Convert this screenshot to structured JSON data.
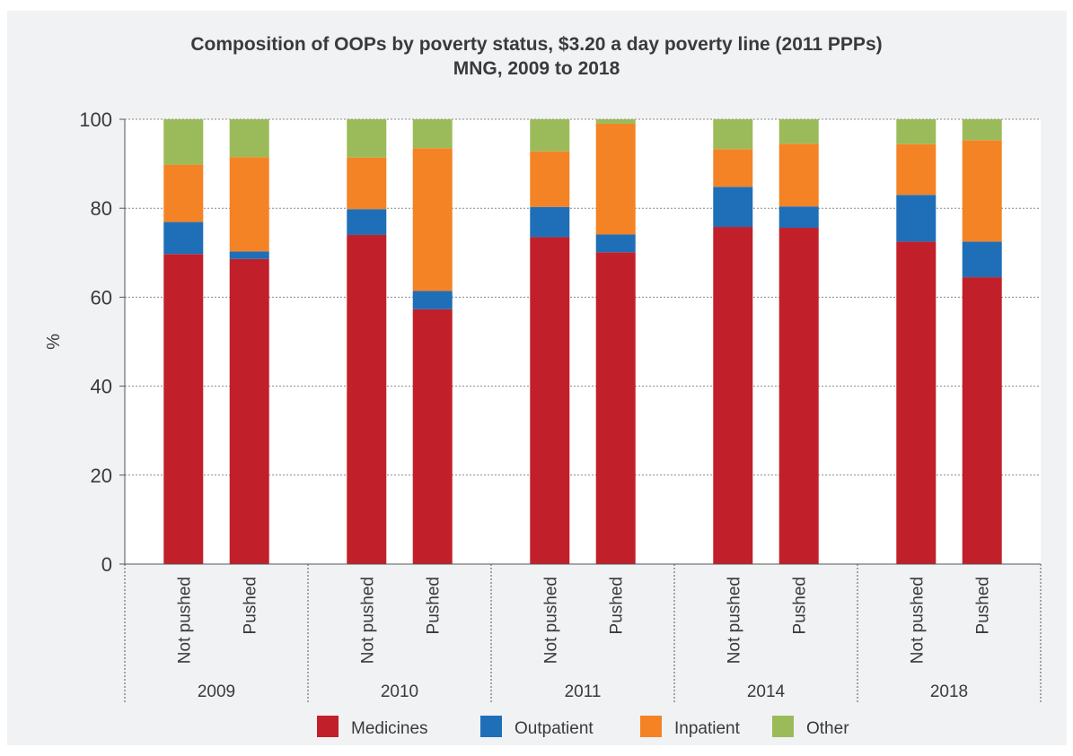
{
  "chart_data": {
    "type": "bar",
    "stacked": true,
    "title": "Composition of OOPs by poverty status, $3.20 a day poverty line (2011 PPPs)",
    "subtitle": "MNG, 2009 to 2018",
    "ylabel": "%",
    "xlabel": "",
    "ylim": [
      0,
      100
    ],
    "yticks": [
      0,
      20,
      40,
      60,
      80,
      100
    ],
    "grid": true,
    "legend_position": "bottom",
    "groups": [
      {
        "label": "2009",
        "bars": [
          {
            "label": "Not pushed",
            "values": [
              69.7,
              7.2,
              12.9,
              10.2
            ]
          },
          {
            "label": "Pushed",
            "values": [
              68.6,
              1.7,
              21.2,
              8.5
            ]
          }
        ]
      },
      {
        "label": "2010",
        "bars": [
          {
            "label": "Not pushed",
            "values": [
              74.0,
              5.8,
              11.6,
              8.6
            ]
          },
          {
            "label": "Pushed",
            "values": [
              57.3,
              4.1,
              32.1,
              6.5
            ]
          }
        ]
      },
      {
        "label": "2011",
        "bars": [
          {
            "label": "Not pushed",
            "values": [
              73.5,
              6.8,
              12.5,
              7.2
            ]
          },
          {
            "label": "Pushed",
            "values": [
              70.1,
              4.0,
              24.9,
              1.0
            ]
          }
        ]
      },
      {
        "label": "2014",
        "bars": [
          {
            "label": "Not pushed",
            "values": [
              75.8,
              9.0,
              8.5,
              6.7
            ]
          },
          {
            "label": "Pushed",
            "values": [
              75.6,
              4.8,
              14.1,
              5.5
            ]
          }
        ]
      },
      {
        "label": "2018",
        "bars": [
          {
            "label": "Not pushed",
            "values": [
              72.5,
              10.5,
              11.4,
              5.6
            ]
          },
          {
            "label": "Pushed",
            "values": [
              64.5,
              8.0,
              22.8,
              4.7
            ]
          }
        ]
      }
    ],
    "series": [
      {
        "name": "Medicines",
        "color": "#c1202a"
      },
      {
        "name": "Outpatient",
        "color": "#1e6fb8"
      },
      {
        "name": "Inpatient",
        "color": "#f48325"
      },
      {
        "name": "Other",
        "color": "#9bbb5a"
      }
    ]
  }
}
